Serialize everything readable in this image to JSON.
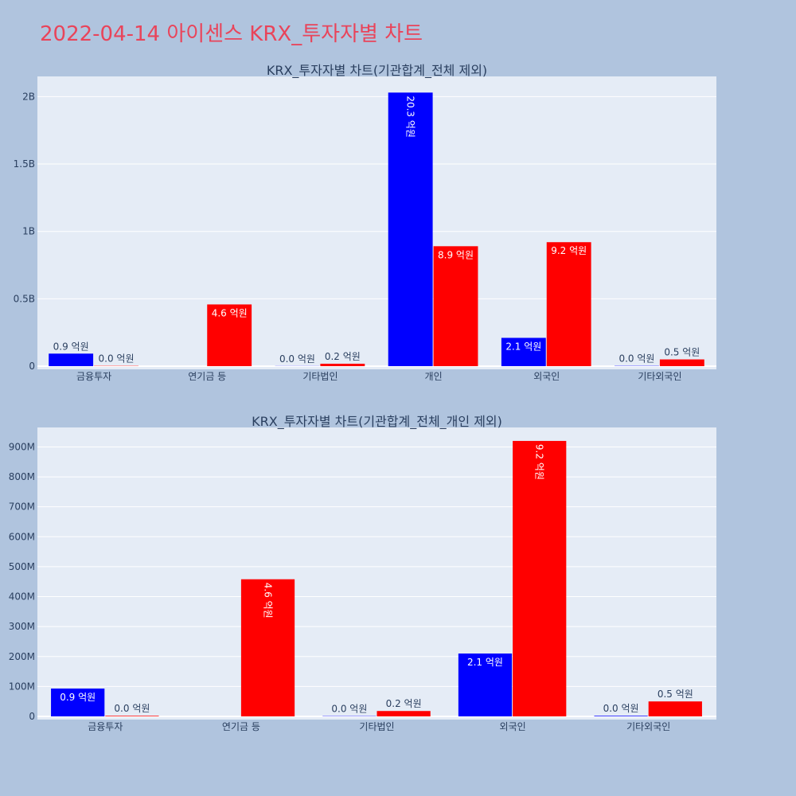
{
  "page_title": "2022-04-14 아이센스 KRX_투자자별 차트",
  "colors": {
    "buy": "#0000ff",
    "sell": "#ff0000",
    "plot_bg": "#e5ecf6",
    "page_bg": "#b0c4de",
    "title": "#e9445a"
  },
  "chart_data": [
    {
      "type": "bar",
      "title": "KRX_투자자별 차트(기관합계_전체 제외)",
      "categories": [
        "금융투자",
        "연기금 등",
        "기타법인",
        "개인",
        "외국인",
        "기타외국인"
      ],
      "series": [
        {
          "color": "#0000ff",
          "values": [
            93000000,
            0,
            1000000,
            2030000000,
            210000000,
            2000000
          ],
          "labels": [
            "0.9 억원",
            "",
            "0.0 억원",
            "20.3 억원",
            "2.1 억원",
            "0.0 억원"
          ]
        },
        {
          "color": "#ff0000",
          "values": [
            2000000,
            458000000,
            18000000,
            890000000,
            920000000,
            50000000
          ],
          "labels": [
            "0.0 억원",
            "4.6 억원",
            "0.2 억원",
            "8.9 억원",
            "9.2 억원",
            "0.5 억원"
          ]
        }
      ],
      "ylim": [
        0,
        2150000000
      ],
      "yticks": [
        0,
        500000000,
        1000000000,
        1500000000,
        2000000000
      ],
      "ytick_labels": [
        "0",
        "0.5B",
        "1B",
        "1.5B",
        "2B"
      ],
      "grid": true
    },
    {
      "type": "bar",
      "title": "KRX_투자자별 차트(기관합계_전체_개인 제외)",
      "categories": [
        "금융투자",
        "연기금 등",
        "기타법인",
        "외국인",
        "기타외국인"
      ],
      "series": [
        {
          "color": "#0000ff",
          "values": [
            93000000,
            0,
            1000000,
            210000000,
            2000000
          ],
          "labels": [
            "0.9 억원",
            "",
            "0.0 억원",
            "2.1 억원",
            "0.0 억원"
          ]
        },
        {
          "color": "#ff0000",
          "values": [
            2000000,
            458000000,
            18000000,
            920000000,
            50000000
          ],
          "labels": [
            "0.0 억원",
            "4.6 억원",
            "0.2 억원",
            "9.2 억원",
            "0.5 억원"
          ]
        }
      ],
      "ylim": [
        0,
        965000000
      ],
      "yticks": [
        0,
        100000000,
        200000000,
        300000000,
        400000000,
        500000000,
        600000000,
        700000000,
        800000000,
        900000000
      ],
      "ytick_labels": [
        "0",
        "100M",
        "200M",
        "300M",
        "400M",
        "500M",
        "600M",
        "700M",
        "800M",
        "900M"
      ],
      "grid": true
    }
  ]
}
